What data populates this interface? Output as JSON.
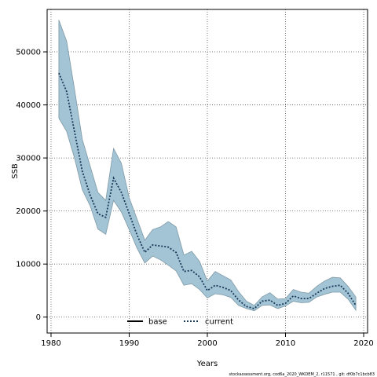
{
  "chart_data": {
    "type": "area",
    "xlabel": "Years",
    "ylabel": "SSB",
    "xlim": [
      1979.5,
      2020.5
    ],
    "ylim": [
      -3000,
      58000
    ],
    "xticks": [
      1980,
      1990,
      2000,
      2010,
      2020
    ],
    "yticks": [
      0,
      10000,
      20000,
      30000,
      40000,
      50000
    ],
    "grid": true,
    "legend_position": "bottom-center",
    "x": [
      1981,
      1982,
      1983,
      1984,
      1985,
      1986,
      1987,
      1988,
      1989,
      1990,
      1991,
      1992,
      1993,
      1994,
      1995,
      1996,
      1997,
      1998,
      1999,
      2000,
      2001,
      2002,
      2003,
      2004,
      2005,
      2006,
      2007,
      2008,
      2009,
      2010,
      2011,
      2012,
      2013,
      2014,
      2015,
      2016,
      2017,
      2018,
      2019
    ],
    "series": [
      {
        "name": "current",
        "style": "dotted",
        "color": "#1a3a5a",
        "values": [
          46000,
          42500,
          35000,
          27500,
          23000,
          19500,
          18800,
          26200,
          23500,
          19500,
          15500,
          12200,
          13600,
          13400,
          13200,
          12200,
          8600,
          8800,
          7600,
          5000,
          6000,
          5600,
          5000,
          3200,
          2000,
          1600,
          3000,
          3200,
          2200,
          2600,
          4000,
          3500,
          3500,
          4500,
          5400,
          5800,
          6000,
          4500,
          2200
        ]
      }
    ],
    "band": {
      "upper": [
        56000,
        52000,
        43000,
        33500,
        28500,
        23500,
        22000,
        31800,
        29000,
        22500,
        18500,
        14500,
        16500,
        17000,
        18000,
        17000,
        11700,
        12400,
        10500,
        6800,
        8600,
        7800,
        7000,
        4800,
        3000,
        2200,
        3800,
        4600,
        3400,
        3500,
        5200,
        4700,
        4500,
        5800,
        6800,
        7500,
        7400,
        5800,
        3800
      ],
      "lower": [
        37500,
        35000,
        30000,
        24000,
        21000,
        16600,
        15600,
        22000,
        19800,
        16500,
        13000,
        10200,
        11500,
        10800,
        9800,
        8700,
        6000,
        6300,
        5200,
        3600,
        4400,
        4200,
        3700,
        2200,
        1600,
        1200,
        2200,
        2300,
        1600,
        2100,
        3000,
        2700,
        2800,
        3800,
        4300,
        4700,
        4700,
        3400,
        1300
      ]
    },
    "band_fill": "#a2c4d5",
    "band_stroke": "#7f99a6",
    "legend": [
      {
        "label": "base",
        "style": "solid",
        "color": "#000000"
      },
      {
        "label": "current",
        "style": "dotted",
        "color": "#1a3a5a"
      }
    ]
  },
  "footer": "stockassessment.org, cod6a_2020_WKDEM_2, r11571 , git: df0b7c1bcb83"
}
